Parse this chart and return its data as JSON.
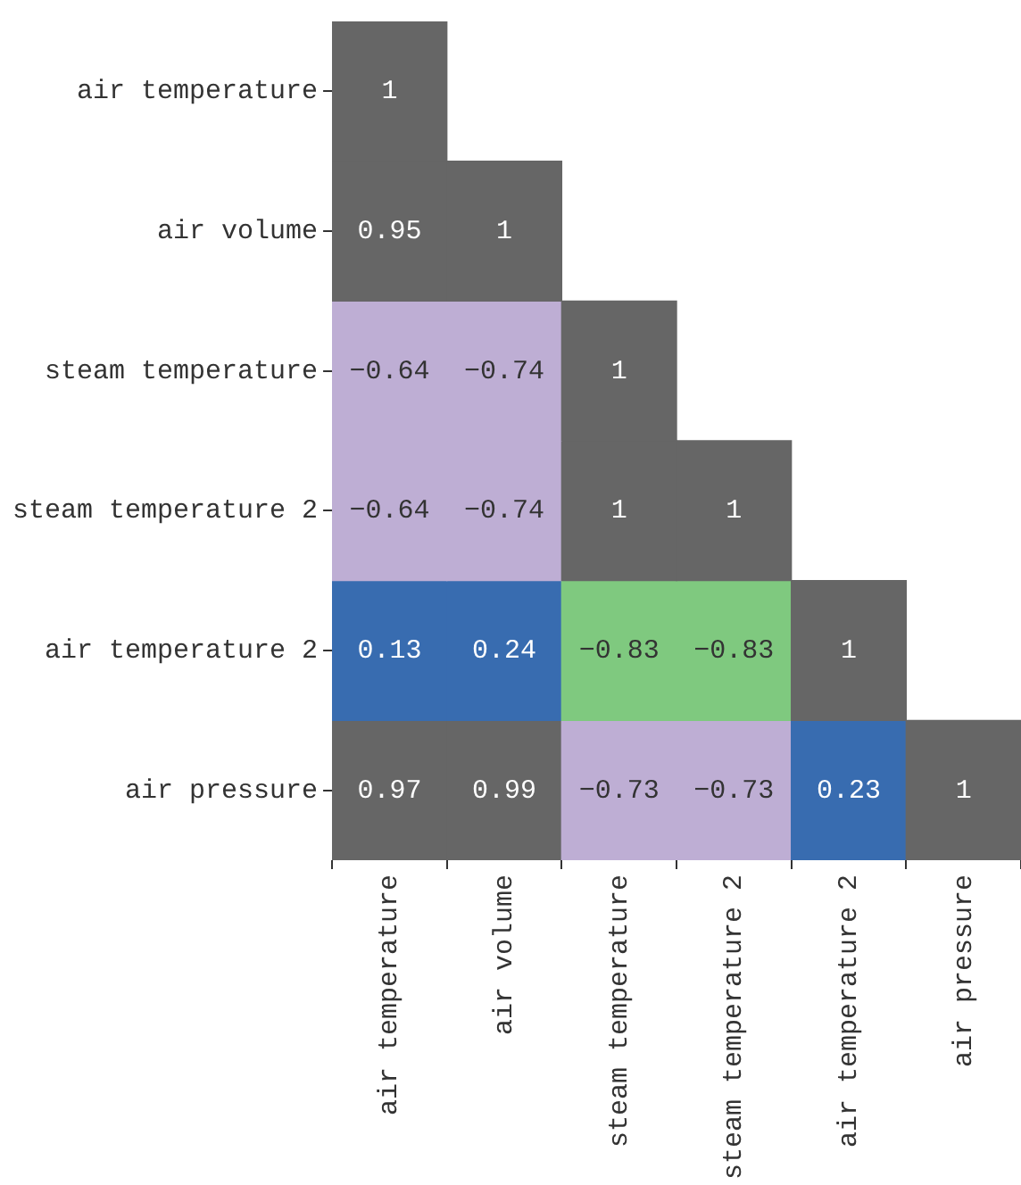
{
  "chart_data": {
    "type": "heatmap",
    "categories": [
      "air temperature",
      "air volume",
      "steam temperature",
      "steam temperature 2",
      "air temperature 2",
      "air pressure"
    ],
    "y_categories": [
      "air temperature",
      "air volume",
      "steam temperature",
      "steam temperature 2",
      "air temperature 2",
      "air pressure"
    ],
    "cells": [
      [
        1,
        null,
        null,
        null,
        null,
        null
      ],
      [
        0.95,
        1,
        null,
        null,
        null,
        null
      ],
      [
        -0.64,
        -0.74,
        1,
        null,
        null,
        null
      ],
      [
        -0.64,
        -0.74,
        1,
        1,
        null,
        null
      ],
      [
        0.13,
        0.24,
        -0.83,
        -0.83,
        1,
        null
      ],
      [
        0.97,
        0.99,
        -0.73,
        -0.73,
        0.23,
        1
      ]
    ],
    "colors": [
      [
        "#666666",
        null,
        null,
        null,
        null,
        null
      ],
      [
        "#666666",
        "#666666",
        null,
        null,
        null,
        null
      ],
      [
        "#beaed4",
        "#beaed4",
        "#666666",
        null,
        null,
        null
      ],
      [
        "#beaed4",
        "#beaed4",
        "#666666",
        "#666666",
        null,
        null
      ],
      [
        "#386cb0",
        "#386cb0",
        "#7fc97f",
        "#7fc97f",
        "#666666",
        null
      ],
      [
        "#666666",
        "#666666",
        "#beaed4",
        "#beaed4",
        "#386cb0",
        "#666666"
      ]
    ],
    "data_labels": true
  }
}
